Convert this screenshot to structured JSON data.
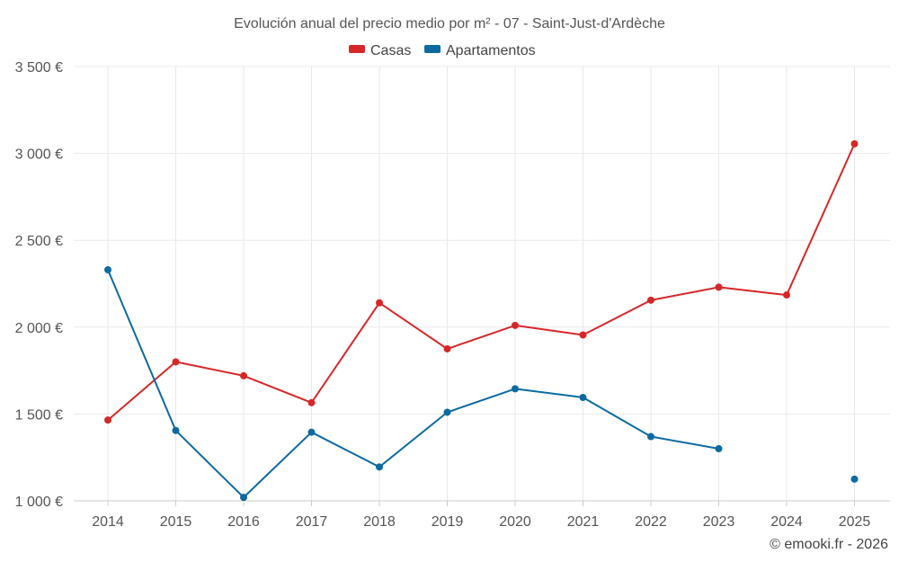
{
  "chart_data": {
    "type": "line",
    "title": "Evolución anual del precio medio por m² - 07 - Saint-Just-d'Ardèche",
    "categories": [
      "2014",
      "2015",
      "2016",
      "2017",
      "2018",
      "2019",
      "2020",
      "2021",
      "2022",
      "2023",
      "2024",
      "2025"
    ],
    "series": [
      {
        "name": "Casas",
        "color": "#d62728",
        "values": [
          1465,
          1800,
          1720,
          1565,
          2140,
          1875,
          2010,
          1955,
          2155,
          2230,
          2185,
          3055
        ]
      },
      {
        "name": "Apartamentos",
        "color": "#0d6aa0",
        "values": [
          2330,
          1405,
          1020,
          1395,
          1195,
          1510,
          1645,
          1595,
          1370,
          1300,
          null,
          1125
        ]
      }
    ],
    "ylim": [
      1000,
      3500
    ],
    "yticks": [
      1000,
      1500,
      2000,
      2500,
      3000,
      3500
    ],
    "ytick_labels": [
      "1 000 €",
      "1 500 €",
      "2 000 €",
      "2 500 €",
      "3 000 €",
      "3 500 €"
    ],
    "xlabel": "",
    "ylabel": "",
    "grid": true,
    "legend_position": "top-center"
  },
  "credit": "© emooki.fr - 2026"
}
